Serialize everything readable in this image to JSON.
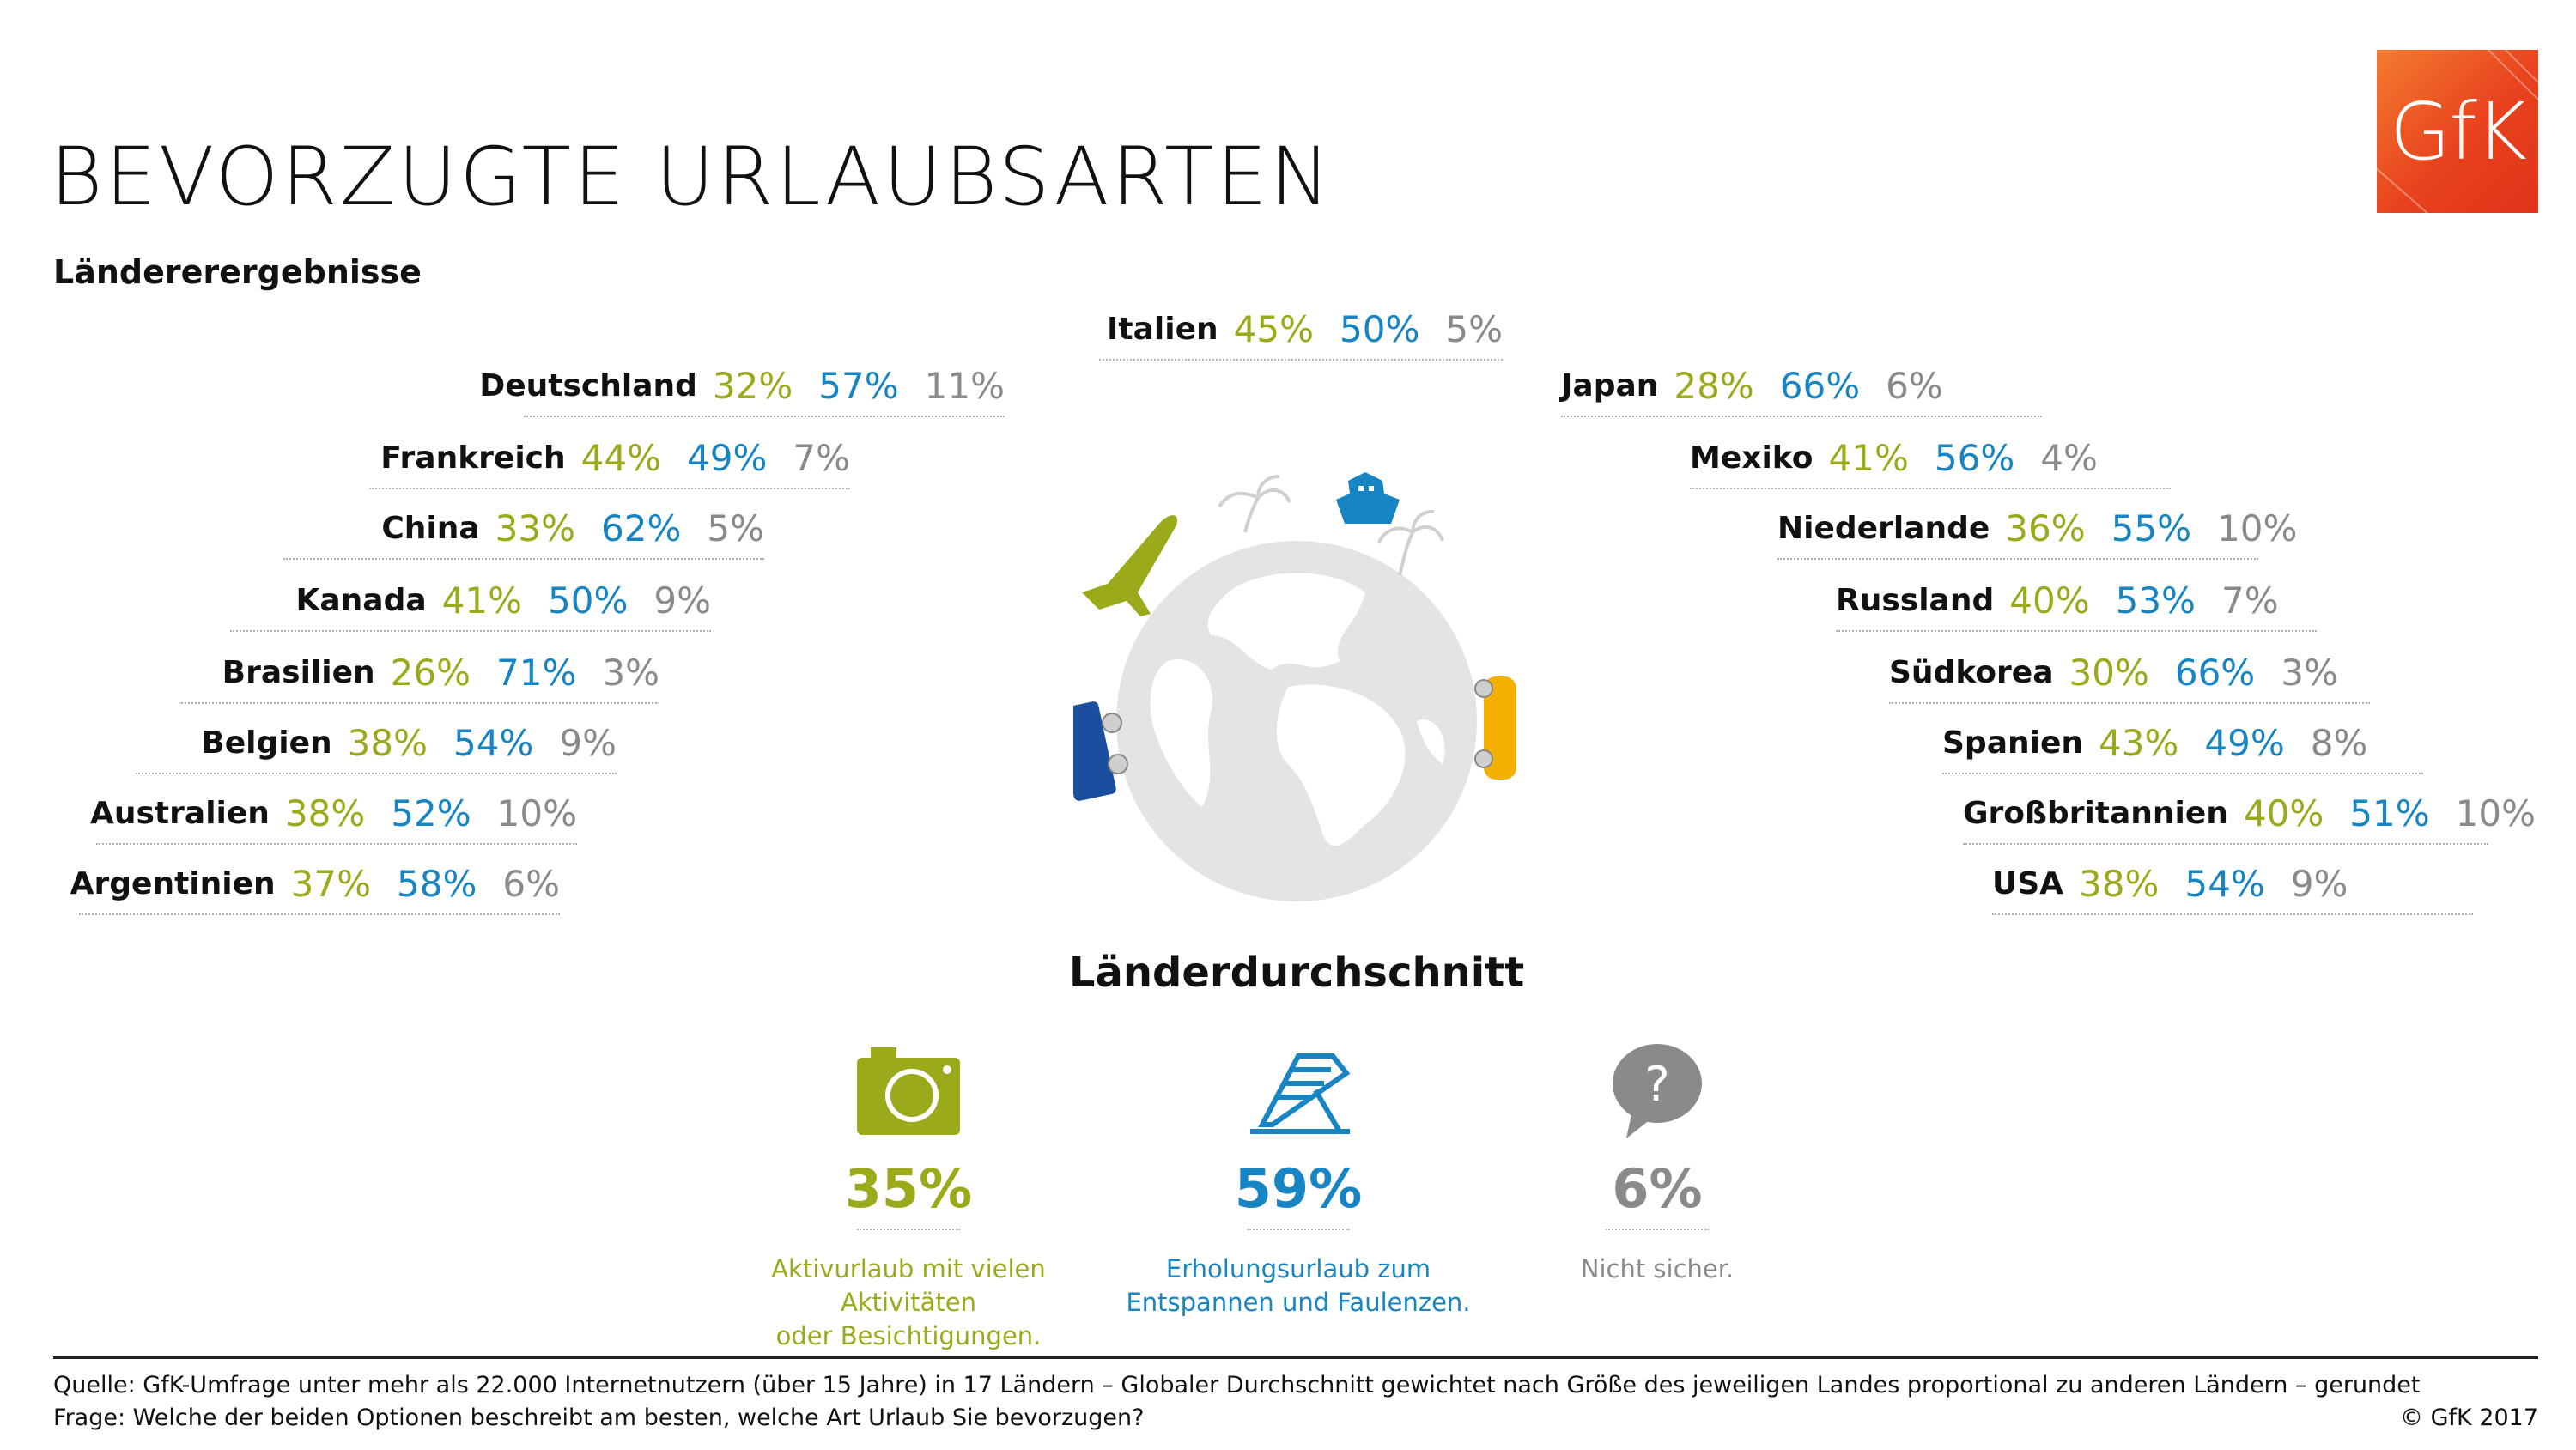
{
  "header": {
    "title": "BEVORZUGTE URLAUBSARTEN",
    "subtitle": "Ländererergebnisse",
    "logo": "GfK"
  },
  "colors": {
    "active": "#9aaa1a",
    "relax": "#1784c3",
    "unsure": "#8a8a8a"
  },
  "chart_data": {
    "type": "table",
    "title": "BEVORZUGTE URLAUBSARTEN",
    "subtitle": "Ländererergebnisse",
    "series_names": [
      "Aktivurlaub mit vielen Aktivitäten oder Besichtigungen.",
      "Erholungsurlaub zum Entspannen und Faulenzen.",
      "Nicht sicher."
    ],
    "center": [
      {
        "country": "Italien",
        "active": "45%",
        "relax": "50%",
        "unsure": "5%"
      }
    ],
    "left": [
      {
        "country": "Deutschland",
        "active": "32%",
        "relax": "57%",
        "unsure": "11%"
      },
      {
        "country": "Frankreich",
        "active": "44%",
        "relax": "49%",
        "unsure": "7%"
      },
      {
        "country": "China",
        "active": "33%",
        "relax": "62%",
        "unsure": "5%"
      },
      {
        "country": "Kanada",
        "active": "41%",
        "relax": "50%",
        "unsure": "9%"
      },
      {
        "country": "Brasilien",
        "active": "26%",
        "relax": "71%",
        "unsure": "3%"
      },
      {
        "country": "Belgien",
        "active": "38%",
        "relax": "54%",
        "unsure": "9%"
      },
      {
        "country": "Australien",
        "active": "38%",
        "relax": "52%",
        "unsure": "10%"
      },
      {
        "country": "Argentinien",
        "active": "37%",
        "relax": "58%",
        "unsure": "6%"
      }
    ],
    "right": [
      {
        "country": "Japan",
        "active": "28%",
        "relax": "66%",
        "unsure": "6%"
      },
      {
        "country": "Mexiko",
        "active": "41%",
        "relax": "56%",
        "unsure": "4%"
      },
      {
        "country": "Niederlande",
        "active": "36%",
        "relax": "55%",
        "unsure": "10%"
      },
      {
        "country": "Russland",
        "active": "40%",
        "relax": "53%",
        "unsure": "7%"
      },
      {
        "country": "Südkorea",
        "active": "30%",
        "relax": "66%",
        "unsure": "3%"
      },
      {
        "country": "Spanien",
        "active": "43%",
        "relax": "49%",
        "unsure": "8%"
      },
      {
        "country": "Großbritannien",
        "active": "40%",
        "relax": "51%",
        "unsure": "10%"
      },
      {
        "country": "USA",
        "active": "38%",
        "relax": "54%",
        "unsure": "9%"
      }
    ],
    "average": {
      "title": "Länderdurchschnitt",
      "items": [
        {
          "icon": "camera-icon",
          "value": "35%",
          "label_line1": "Aktivurlaub mit vielen Aktivitäten",
          "label_line2": "oder Besichtigungen."
        },
        {
          "icon": "deck-chair-icon",
          "value": "59%",
          "label_line1": "Erholungsurlaub zum",
          "label_line2": "Entspannen und Faulenzen."
        },
        {
          "icon": "question-bubble-icon",
          "value": "6%",
          "label_line1": "Nicht sicher.",
          "label_line2": ""
        }
      ]
    }
  },
  "footer": {
    "source": "Quelle: GfK-Umfrage unter mehr als 22.000 Internetnutzern (über 15 Jahre) in 17 Ländern – Globaler Durchschnitt gewichtet nach Größe des jeweiligen Landes proportional zu anderen Ländern – gerundet",
    "question": "Frage: Welche der beiden Optionen beschreibt am besten, welche Art Urlaub Sie bevorzugen?",
    "copyright": "© GfK 2017"
  }
}
